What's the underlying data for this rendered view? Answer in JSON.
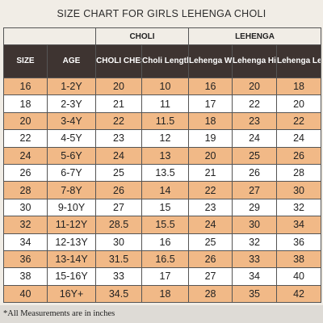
{
  "title": "SIZE CHART FOR GIRLS LEHENGA CHOLI",
  "groups": {
    "choli": "CHOLI",
    "lehenga": "LEHENGA"
  },
  "headers": {
    "size": "SIZE",
    "age": "AGE",
    "choli_chest": "CHOLI CHEST",
    "choli_length": "Choli Length",
    "lehenga_waist": "Lehenga Waist",
    "lehenga_hip": "Lehenga Hip",
    "lehenga_length": "Lehenga Length"
  },
  "rows": [
    [
      "16",
      "1-2Y",
      "20",
      "10",
      "16",
      "20",
      "18"
    ],
    [
      "18",
      "2-3Y",
      "21",
      "11",
      "17",
      "22",
      "20"
    ],
    [
      "20",
      "3-4Y",
      "22",
      "11.5",
      "18",
      "23",
      "22"
    ],
    [
      "22",
      "4-5Y",
      "23",
      "12",
      "19",
      "24",
      "24"
    ],
    [
      "24",
      "5-6Y",
      "24",
      "13",
      "20",
      "25",
      "26"
    ],
    [
      "26",
      "6-7Y",
      "25",
      "13.5",
      "21",
      "26",
      "28"
    ],
    [
      "28",
      "7-8Y",
      "26",
      "14",
      "22",
      "27",
      "30"
    ],
    [
      "30",
      "9-10Y",
      "27",
      "15",
      "23",
      "29",
      "32"
    ],
    [
      "32",
      "11-12Y",
      "28.5",
      "15.5",
      "24",
      "30",
      "34"
    ],
    [
      "34",
      "12-13Y",
      "30",
      "16",
      "25",
      "32",
      "36"
    ],
    [
      "36",
      "13-14Y",
      "31.5",
      "16.5",
      "26",
      "33",
      "38"
    ],
    [
      "38",
      "15-16Y",
      "33",
      "17",
      "27",
      "34",
      "40"
    ],
    [
      "40",
      "16Y+",
      "34.5",
      "18",
      "28",
      "35",
      "42"
    ]
  ],
  "footnote": "*All Measurements are in inches",
  "colors": {
    "header_bg": "#3e3431",
    "row_accent": "#f1b987",
    "row_plain": "#ffffff",
    "page_bg": "#f1ede6"
  }
}
